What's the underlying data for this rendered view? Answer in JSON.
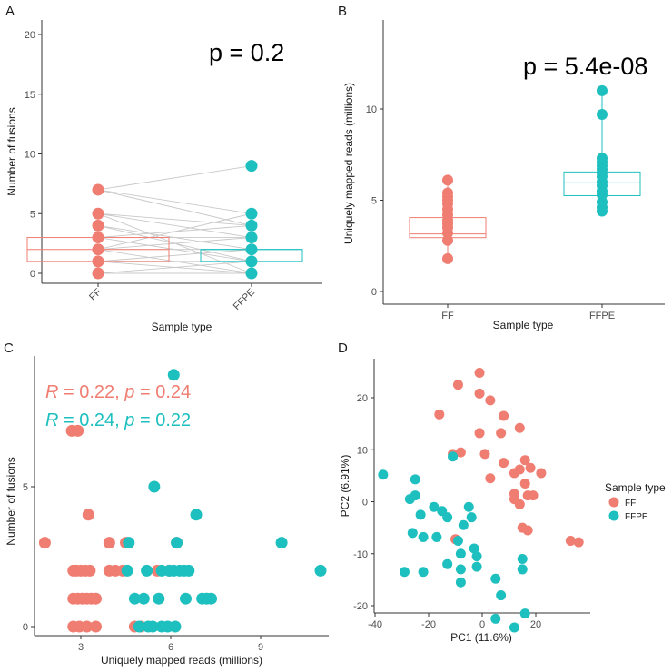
{
  "colors": {
    "ff": "#F07D71",
    "ffpe": "#1EBFBF",
    "axis": "#333333",
    "line": "#c8c8c8"
  },
  "chart_data": [
    {
      "panel": "A",
      "type": "box-paired-scatter",
      "xlabel": "Sample type",
      "ylabel": "Number of fusions",
      "categories": [
        "FF",
        "FFPE"
      ],
      "ylim": [
        0,
        20
      ],
      "yticks": [
        "0",
        "5",
        "10",
        "15",
        "20"
      ],
      "annotation": "p = 0.2",
      "boxes": [
        {
          "group": "FF",
          "q1": 1,
          "median": 2,
          "q3": 3,
          "whisker_low": 0,
          "whisker_high": 3
        },
        {
          "group": "FFPE",
          "q1": 1,
          "median": 2,
          "q3": 2,
          "whisker_low": 1,
          "whisker_high": 2
        }
      ],
      "points_ff": [
        0,
        1,
        2,
        3,
        4,
        5,
        7
      ],
      "points_ffpe": [
        0,
        1,
        2,
        3,
        4,
        5,
        9
      ],
      "pairs": [
        [
          7,
          9
        ],
        [
          7,
          5
        ],
        [
          7,
          4
        ],
        [
          5,
          4
        ],
        [
          5,
          3
        ],
        [
          4,
          2
        ],
        [
          4,
          1
        ],
        [
          3,
          3
        ],
        [
          3,
          1
        ],
        [
          2,
          2
        ],
        [
          2,
          0
        ],
        [
          2,
          5
        ],
        [
          1,
          1
        ],
        [
          1,
          2
        ],
        [
          1,
          0
        ],
        [
          0,
          1
        ],
        [
          0,
          0
        ],
        [
          5,
          0
        ],
        [
          3,
          4
        ],
        [
          2,
          3
        ]
      ]
    },
    {
      "panel": "B",
      "type": "box-scatter",
      "xlabel": "Sample type",
      "ylabel": "Uniquely mapped reads (millions)",
      "categories": [
        "FF",
        "FFPE"
      ],
      "ylim": [
        -0.9,
        14.2
      ],
      "yticks": [
        "0",
        "5",
        "10"
      ],
      "annotation": "p = 5.4e-08",
      "boxes": [
        {
          "group": "FF",
          "q1": 2.95,
          "median": 3.15,
          "q3": 4.05,
          "whisker_low": 1.8,
          "whisker_high": 6.1
        },
        {
          "group": "FFPE",
          "q1": 5.25,
          "median": 5.95,
          "q3": 6.55,
          "whisker_low": 4.4,
          "whisker_high": 11.0
        }
      ],
      "points_ff": [
        1.8,
        2.8,
        3.2,
        3.5,
        3.7,
        3.9,
        4.2,
        4.5,
        4.8,
        5.0,
        5.2,
        5.4,
        6.1
      ],
      "points_ffpe": [
        4.4,
        4.6,
        4.9,
        5.3,
        5.5,
        5.8,
        6.0,
        6.3,
        6.5,
        6.7,
        6.9,
        7.1,
        7.3,
        9.7,
        11.0
      ]
    },
    {
      "panel": "C",
      "type": "scatter",
      "xlabel": "Uniquely mapped reads (millions)",
      "ylabel": "Number of fusions",
      "xlim": [
        1.5,
        11.5
      ],
      "ylim": [
        -0.3,
        9.2
      ],
      "xticks": [
        "3",
        "6",
        "9"
      ],
      "yticks": [
        "0",
        "5"
      ],
      "stats": [
        {
          "group": "FF",
          "R_label": "R",
          "R_value": " = 0.22, ",
          "p_label": "p",
          "p_value": " = 0.24"
        },
        {
          "group": "FFPE",
          "R_label": "R",
          "R_value": " = 0.24, ",
          "p_label": "p",
          "p_value": " = 0.22"
        }
      ],
      "series": [
        {
          "name": "FF",
          "points": [
            [
              1.8,
              3
            ],
            [
              2.7,
              7
            ],
            [
              2.9,
              7
            ],
            [
              2.75,
              2
            ],
            [
              2.85,
              2
            ],
            [
              3.0,
              2
            ],
            [
              3.15,
              2
            ],
            [
              3.3,
              2
            ],
            [
              2.75,
              1
            ],
            [
              2.9,
              1
            ],
            [
              3.05,
              1
            ],
            [
              3.2,
              1
            ],
            [
              3.35,
              1
            ],
            [
              3.5,
              1
            ],
            [
              2.75,
              0
            ],
            [
              2.95,
              0
            ],
            [
              3.2,
              0
            ],
            [
              3.5,
              0
            ],
            [
              3.25,
              4
            ],
            [
              3.95,
              3
            ],
            [
              3.95,
              2
            ],
            [
              4.15,
              2
            ],
            [
              4.4,
              2
            ],
            [
              4.5,
              3
            ],
            [
              4.8,
              0
            ],
            [
              5.0,
              0
            ],
            [
              5.55,
              2
            ],
            [
              5.95,
              2
            ],
            [
              6.2,
              3
            ]
          ]
        },
        {
          "name": "FFPE",
          "points": [
            [
              6.1,
              9
            ],
            [
              5.45,
              5
            ],
            [
              6.85,
              4
            ],
            [
              4.6,
              3
            ],
            [
              6.2,
              3
            ],
            [
              9.7,
              3
            ],
            [
              11.0,
              2
            ],
            [
              5.2,
              2
            ],
            [
              5.7,
              2
            ],
            [
              5.95,
              2
            ],
            [
              6.1,
              2
            ],
            [
              6.3,
              2
            ],
            [
              6.45,
              2
            ],
            [
              6.6,
              2
            ],
            [
              4.55,
              2
            ],
            [
              4.8,
              1
            ],
            [
              5.1,
              1
            ],
            [
              5.6,
              1
            ],
            [
              6.5,
              1
            ],
            [
              7.05,
              1
            ],
            [
              7.2,
              1
            ],
            [
              7.35,
              1
            ],
            [
              4.95,
              0
            ],
            [
              5.25,
              0
            ],
            [
              5.4,
              0
            ],
            [
              5.7,
              0
            ],
            [
              5.9,
              0
            ],
            [
              6.15,
              0
            ]
          ]
        }
      ]
    },
    {
      "panel": "D",
      "type": "scatter",
      "xlabel": "PC1 (11.6%)",
      "ylabel": "PC2 (6.91%)",
      "xlim": [
        -40,
        39
      ],
      "ylim": [
        -25.5,
        28
      ],
      "xticks": [
        "-40",
        "-20",
        "0",
        "20"
      ],
      "yticks": [
        "-20",
        "-10",
        "0",
        "10",
        "20"
      ],
      "legend_title": "Sample type",
      "legend_items": [
        "FF",
        "FFPE"
      ],
      "series": [
        {
          "name": "FF",
          "points": [
            [
              -1,
              24.8
            ],
            [
              -9,
              22.5
            ],
            [
              -1,
              20.8
            ],
            [
              3,
              19.5
            ],
            [
              -16,
              16.8
            ],
            [
              8,
              16.5
            ],
            [
              14,
              14.2
            ],
            [
              -1,
              13.2
            ],
            [
              7,
              13.2
            ],
            [
              -8,
              9.5
            ],
            [
              -11,
              9.2
            ],
            [
              1,
              9.2
            ],
            [
              16,
              8
            ],
            [
              8,
              7.5
            ],
            [
              18,
              6.5
            ],
            [
              14,
              6.2
            ],
            [
              22,
              5.5
            ],
            [
              12,
              5.5
            ],
            [
              3,
              4.5
            ],
            [
              16,
              3.5
            ],
            [
              12,
              1.5
            ],
            [
              17,
              1.2
            ],
            [
              19,
              1.2
            ],
            [
              12,
              0.5
            ],
            [
              14,
              -0.5
            ],
            [
              15,
              -5
            ],
            [
              17,
              -5.5
            ],
            [
              33,
              -7.5
            ],
            [
              36,
              -7.8
            ],
            [
              -10,
              -7.2
            ]
          ]
        },
        {
          "name": "FFPE",
          "points": [
            [
              -37,
              5.2
            ],
            [
              -25,
              4.3
            ],
            [
              -11,
              8.7
            ],
            [
              -25,
              1.2
            ],
            [
              -27,
              0.5
            ],
            [
              -18,
              -1
            ],
            [
              -5,
              -1
            ],
            [
              -15,
              -1.8
            ],
            [
              -23,
              -2.5
            ],
            [
              -13,
              -3
            ],
            [
              -4,
              -3
            ],
            [
              -7,
              -4.5
            ],
            [
              -26,
              -6
            ],
            [
              -22,
              -6.8
            ],
            [
              -17,
              -6.8
            ],
            [
              -9,
              -7.5
            ],
            [
              -3,
              -9
            ],
            [
              -2,
              -10.5
            ],
            [
              -8,
              -10
            ],
            [
              -13,
              -12
            ],
            [
              -8,
              -13
            ],
            [
              -29,
              -13.5
            ],
            [
              -22,
              -13.5
            ],
            [
              15,
              -11
            ],
            [
              15,
              -13
            ],
            [
              -8,
              -15.5
            ],
            [
              7,
              -18
            ],
            [
              5,
              -14.8
            ],
            [
              5,
              -22.5
            ],
            [
              16,
              -21.5
            ],
            [
              12,
              -24.2
            ],
            [
              -2,
              -12.5
            ]
          ]
        }
      ]
    }
  ]
}
